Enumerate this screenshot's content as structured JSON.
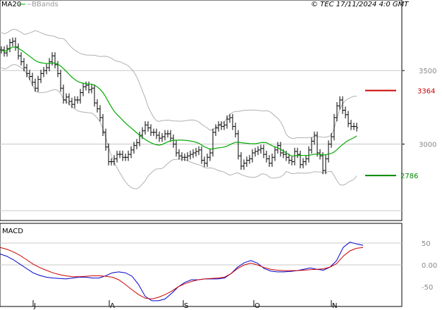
{
  "chart_data": [
    {
      "type": "line",
      "panel": "price",
      "copyright": "© TEC 17/11/2024 4:0 GMT",
      "legend": {
        "ma_label": "MA20",
        "bb_label": "BBands"
      },
      "legend_placement": "top-left",
      "grid": true,
      "ylim": [
        2480,
        3980
      ],
      "y_ticks": [
        {
          "value": 3500,
          "label": "3500"
        },
        {
          "value": 3000,
          "label": "3000"
        }
      ],
      "x_labels": [
        "J",
        "A",
        "S",
        "O",
        "N"
      ],
      "levels": [
        {
          "name": "resistance",
          "value": 3364,
          "label": "3364",
          "color": "#cc0000"
        },
        {
          "name": "support",
          "value": 2786,
          "label": "2786",
          "color": "#008800"
        }
      ],
      "colors": {
        "bars": "#000000",
        "ma20": "#00aa00",
        "bbands": "#b0b0b0",
        "grid": "#c8c8c8"
      },
      "bars_close": [
        3640,
        3620,
        3650,
        3690,
        3700,
        3660,
        3600,
        3560,
        3520,
        3480,
        3460,
        3420,
        3380,
        3440,
        3480,
        3500,
        3520,
        3560,
        3600,
        3540,
        3480,
        3380,
        3300,
        3320,
        3290,
        3270,
        3300,
        3300,
        3350,
        3390,
        3400,
        3370,
        3380,
        3280,
        3240,
        3180,
        3080,
        2980,
        2880,
        2880,
        2900,
        2930,
        2930,
        2910,
        2910,
        2930,
        2960,
        2990,
        3010,
        3060,
        3090,
        3130,
        3110,
        3080,
        3080,
        3060,
        3040,
        3050,
        3070,
        3070,
        3040,
        3000,
        2940,
        2920,
        2910,
        2910,
        2920,
        2930,
        2940,
        2950,
        2960,
        2890,
        2870,
        2910,
        2940,
        3080,
        3110,
        3130,
        3120,
        3130,
        3170,
        3180,
        3120,
        3070,
        2920,
        2850,
        2870,
        2890,
        2900,
        2940,
        2950,
        2960,
        2970,
        2930,
        2900,
        2870,
        2910,
        2960,
        2990,
        2940,
        2930,
        2910,
        2890,
        2880,
        2950,
        2930,
        2860,
        2880,
        2900,
        2960,
        3020,
        3060,
        2940,
        2920,
        2820,
        2900,
        3000,
        3050,
        3180,
        3260,
        3300,
        3230,
        3200,
        3140,
        3120,
        3120,
        3110
      ]
    },
    {
      "type": "line",
      "panel": "macd",
      "title": "MACD",
      "ylim": [
        -0.95,
        0.95
      ],
      "y_ticks": [
        {
          "value": 0.5,
          "label": "50"
        },
        {
          "value": 0,
          "label": "0.00"
        },
        {
          "value": -0.5,
          "label": "-50"
        }
      ],
      "series": [
        {
          "color": "#0000cc",
          "values": [
            0.25,
            0.2,
            0.12,
            0.02,
            -0.08,
            -0.18,
            -0.24,
            -0.28,
            -0.3,
            -0.31,
            -0.32,
            -0.3,
            -0.28,
            -0.28,
            -0.3,
            -0.3,
            -0.25,
            -0.18,
            -0.16,
            -0.18,
            -0.26,
            -0.45,
            -0.72,
            -0.82,
            -0.82,
            -0.78,
            -0.65,
            -0.5,
            -0.4,
            -0.34,
            -0.34,
            -0.32,
            -0.32,
            -0.32,
            -0.3,
            -0.2,
            -0.05,
            0.05,
            0.1,
            0.04,
            -0.08,
            -0.14,
            -0.16,
            -0.16,
            -0.15,
            -0.13,
            -0.1,
            -0.07,
            -0.1,
            -0.12,
            -0.05,
            0.1,
            0.4,
            0.52,
            0.48,
            0.45
          ]
        },
        {
          "color": "#cc0000",
          "values": [
            0.4,
            0.36,
            0.3,
            0.22,
            0.12,
            0.02,
            -0.06,
            -0.12,
            -0.18,
            -0.22,
            -0.25,
            -0.27,
            -0.27,
            -0.26,
            -0.25,
            -0.25,
            -0.26,
            -0.28,
            -0.34,
            -0.45,
            -0.57,
            -0.68,
            -0.76,
            -0.78,
            -0.74,
            -0.68,
            -0.6,
            -0.5,
            -0.43,
            -0.38,
            -0.34,
            -0.32,
            -0.31,
            -0.3,
            -0.28,
            -0.2,
            -0.08,
            0.0,
            0.04,
            0.0,
            -0.06,
            -0.1,
            -0.12,
            -0.13,
            -0.13,
            -0.13,
            -0.12,
            -0.11,
            -0.1,
            -0.09,
            -0.05,
            0.03,
            0.2,
            0.32,
            0.38,
            0.4
          ]
        }
      ]
    }
  ]
}
